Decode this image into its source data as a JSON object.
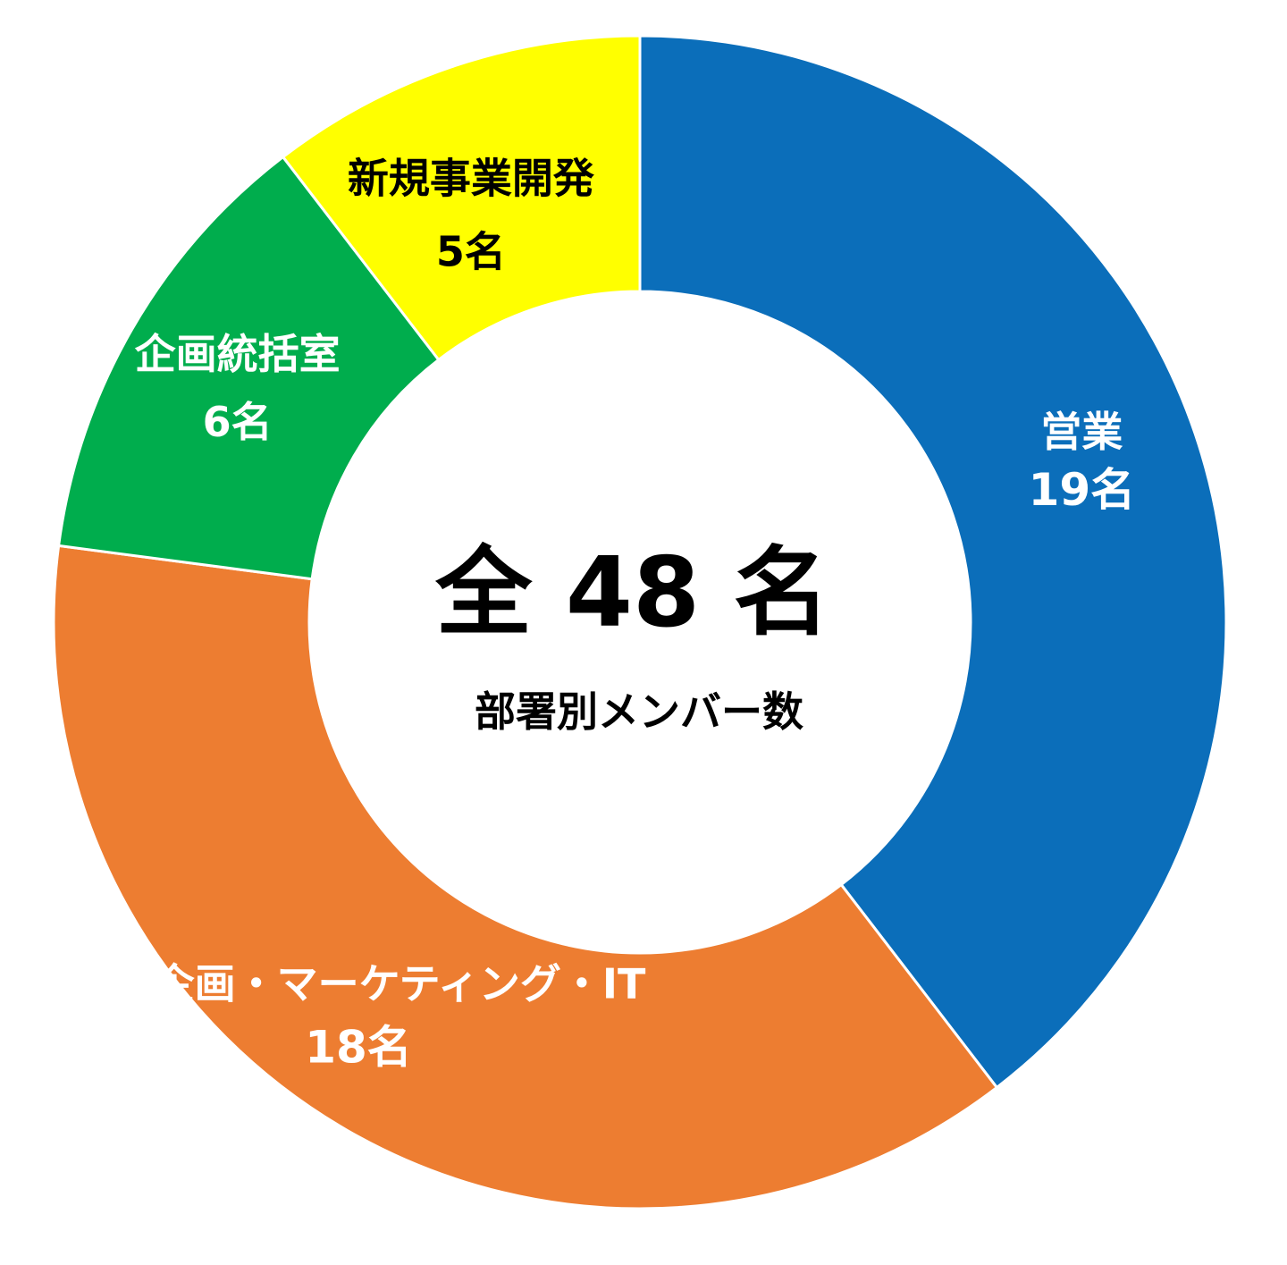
{
  "chart_data": {
    "type": "pie",
    "title": "",
    "center": {
      "total_label": "全 48 名",
      "subtitle": "部署別メンバー数"
    },
    "slices": [
      {
        "name": "営業",
        "value": 19,
        "value_label": "19名",
        "color": "#0B6EBA",
        "text_color": "#FFFFFF"
      },
      {
        "name": "商品企画・マーケティング・IT",
        "value": 18,
        "value_label": "18名",
        "color": "#ED7D31",
        "text_color": "#FFFFFF"
      },
      {
        "name": "企画統括室",
        "value": 6,
        "value_label": "6名",
        "color": "#00AD4D",
        "text_color": "#FFFFFF"
      },
      {
        "name": "新規事業開発",
        "value": 5,
        "value_label": "5名",
        "color": "#FFFF00",
        "text_color": "#000000"
      }
    ],
    "legend": "none",
    "grid": false
  }
}
